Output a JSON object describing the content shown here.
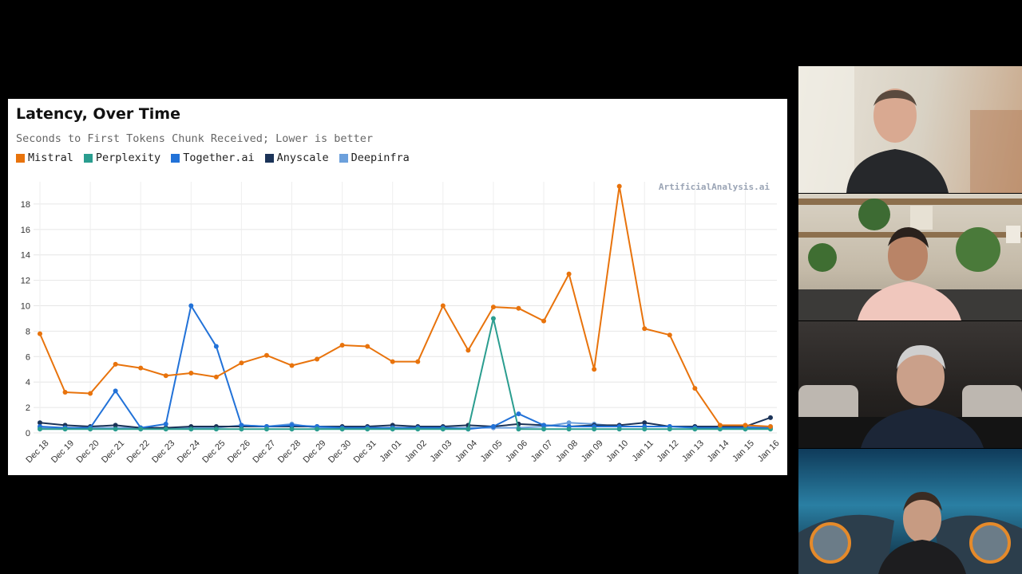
{
  "chart_data": {
    "type": "line",
    "title": "Latency, Over Time",
    "subtitle": "Seconds to First Tokens Chunk Received; Lower is better",
    "watermark": "ArtificialAnalysis.ai",
    "legend_placement": "top-left",
    "grid": true,
    "ylim": [
      0,
      19.5
    ],
    "yticks": [
      0,
      2,
      4,
      6,
      8,
      10,
      12,
      14,
      16,
      18
    ],
    "x": [
      "Dec 18",
      "Dec 19",
      "Dec 20",
      "Dec 21",
      "Dec 22",
      "Dec 23",
      "Dec 24",
      "Dec 25",
      "Dec 26",
      "Dec 27",
      "Dec 28",
      "Dec 29",
      "Dec 30",
      "Dec 31",
      "Jan 01",
      "Jan 02",
      "Jan 03",
      "Jan 04",
      "Jan 05",
      "Jan 06",
      "Jan 07",
      "Jan 08",
      "Jan 09",
      "Jan 10",
      "Jan 11",
      "Jan 12",
      "Jan 13",
      "Jan 14",
      "Jan 15",
      "Jan 16"
    ],
    "series": [
      {
        "name": "Mistral",
        "color": "#e8730c",
        "values": [
          7.8,
          3.2,
          3.1,
          5.4,
          5.1,
          4.5,
          4.7,
          4.4,
          5.5,
          6.1,
          5.3,
          5.8,
          6.9,
          6.8,
          5.6,
          5.6,
          10.0,
          6.5,
          9.9,
          9.8,
          8.8,
          12.5,
          5.0,
          19.4,
          8.2,
          7.7,
          3.5,
          0.6,
          0.6,
          0.5
        ]
      },
      {
        "name": "Perplexity",
        "color": "#2a9d8f",
        "values": [
          0.3,
          0.3,
          0.3,
          0.3,
          0.3,
          0.3,
          0.3,
          0.3,
          0.3,
          0.3,
          0.3,
          0.3,
          0.3,
          0.3,
          0.3,
          0.3,
          0.3,
          0.3,
          9.0,
          0.3,
          0.3,
          0.3,
          0.3,
          0.3,
          0.3,
          0.3,
          0.3,
          0.3,
          0.3,
          0.3
        ]
      },
      {
        "name": "Together.ai",
        "color": "#2272d8",
        "values": [
          0.5,
          0.4,
          0.4,
          3.3,
          0.4,
          0.7,
          10.0,
          6.8,
          0.6,
          0.5,
          0.6,
          0.5,
          0.4,
          0.4,
          0.4,
          0.4,
          0.4,
          0.3,
          0.5,
          1.5,
          0.6,
          0.5,
          0.5,
          0.5,
          0.5,
          0.5,
          0.4,
          0.4,
          0.4,
          0.4
        ]
      },
      {
        "name": "Anyscale",
        "color": "#1b3358",
        "values": [
          0.8,
          0.6,
          0.5,
          0.6,
          0.4,
          0.4,
          0.5,
          0.5,
          0.5,
          0.5,
          0.5,
          0.5,
          0.5,
          0.5,
          0.6,
          0.5,
          0.5,
          0.6,
          0.5,
          0.7,
          0.6,
          0.5,
          0.6,
          0.6,
          0.8,
          0.5,
          0.5,
          0.5,
          0.5,
          1.2
        ]
      },
      {
        "name": "Deepinfra",
        "color": "#6ca0dc",
        "values": [
          0.4,
          0.4,
          0.4,
          0.4,
          0.4,
          0.4,
          0.4,
          0.4,
          0.6,
          0.5,
          0.7,
          0.4,
          0.4,
          0.4,
          0.4,
          0.4,
          0.4,
          0.4,
          0.4,
          0.4,
          0.5,
          0.8,
          0.7,
          0.5,
          0.5,
          0.5,
          0.5,
          0.5,
          0.5,
          0.5
        ]
      }
    ]
  }
}
